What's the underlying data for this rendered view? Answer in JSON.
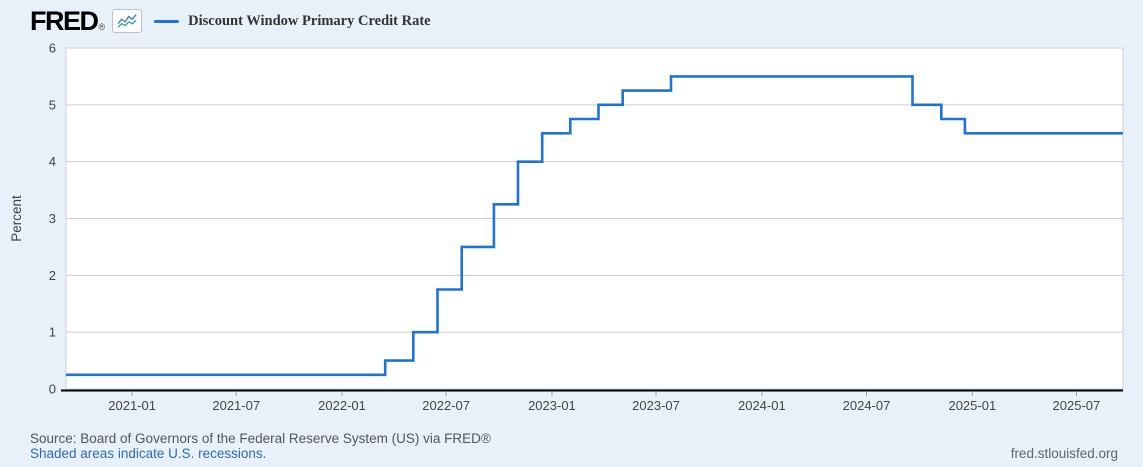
{
  "header": {
    "logo_text": "FRED",
    "registered_mark": "®"
  },
  "colors": {
    "background": "#e8f1f9",
    "line": "#1f73d8",
    "plot_background": "#ffffff",
    "gridline": "#cccccc",
    "plot_border": "#c9d2da",
    "axis_line": "#000000",
    "tick_label": "#444444",
    "source_text": "#555555",
    "link": "#2b6cb5",
    "site_text": "#5b6670",
    "icon_line_blue": "#4a82c4",
    "icon_line_green": "#3fae8a"
  },
  "footer": {
    "source": "Source: Board of Governors of the Federal Reserve System (US) via FRED®",
    "recession_note": "Shaded areas indicate U.S. recessions.",
    "site": "fred.stlouisfed.org"
  },
  "chart_data": {
    "type": "line",
    "step": "after",
    "title": "Discount Window Primary Credit Rate",
    "ylabel": "Percent",
    "ylim": [
      0,
      6
    ],
    "yticks": [
      0,
      1,
      2,
      3,
      4,
      5,
      6
    ],
    "grid": "horizontal",
    "legend_position": "top-left",
    "x_domain": [
      "2020-09-08",
      "2025-09-20"
    ],
    "xticks": [
      "2021-01",
      "2021-07",
      "2022-01",
      "2022-07",
      "2023-01",
      "2023-07",
      "2024-01",
      "2024-07",
      "2025-01",
      "2025-07"
    ],
    "series": [
      {
        "name": "Discount Window Primary Credit Rate",
        "color": "#1f73d8",
        "units": "Percent",
        "points": [
          {
            "date": "2020-09-08",
            "value": 0.25
          },
          {
            "date": "2022-03-17",
            "value": 0.5
          },
          {
            "date": "2022-05-05",
            "value": 1.0
          },
          {
            "date": "2022-06-16",
            "value": 1.75
          },
          {
            "date": "2022-07-28",
            "value": 2.5
          },
          {
            "date": "2022-09-22",
            "value": 3.25
          },
          {
            "date": "2022-11-03",
            "value": 4.0
          },
          {
            "date": "2022-12-15",
            "value": 4.5
          },
          {
            "date": "2023-02-02",
            "value": 4.75
          },
          {
            "date": "2023-03-23",
            "value": 5.0
          },
          {
            "date": "2023-05-04",
            "value": 5.25
          },
          {
            "date": "2023-07-27",
            "value": 5.5
          },
          {
            "date": "2024-09-19",
            "value": 5.0
          },
          {
            "date": "2024-11-08",
            "value": 4.75
          },
          {
            "date": "2024-12-19",
            "value": 4.5
          },
          {
            "date": "2025-09-20",
            "value": 4.5
          }
        ]
      }
    ]
  }
}
